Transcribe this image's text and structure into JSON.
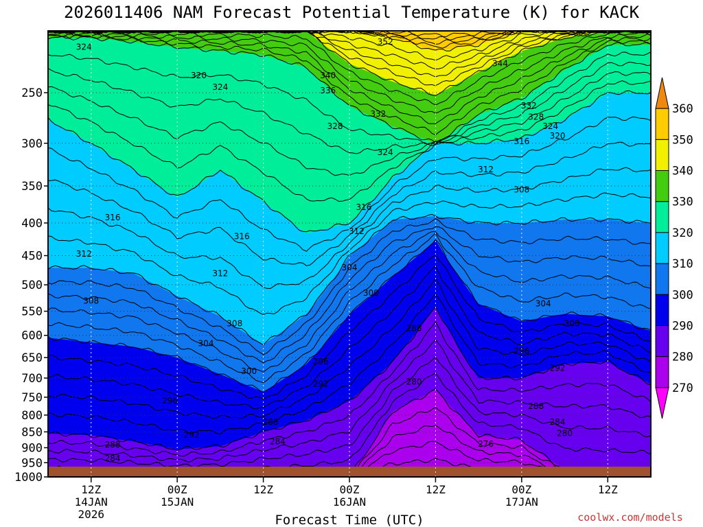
{
  "chart_data": {
    "type": "heatmap",
    "title": "2026011406 NAM Forecast Potential Temperature (K) for KACK",
    "xlabel": "Forecast Time (UTC)",
    "ylabel": "",
    "credit": "coolwx.com/models",
    "x_hours_from_start": [
      0,
      84
    ],
    "x_ticks": [
      {
        "h": 6,
        "label": "12Z",
        "sub": "14JAN",
        "sub2": "2026"
      },
      {
        "h": 18,
        "label": "00Z",
        "sub": "15JAN",
        "sub2": ""
      },
      {
        "h": 30,
        "label": "12Z",
        "sub": "",
        "sub2": ""
      },
      {
        "h": 42,
        "label": "00Z",
        "sub": "16JAN",
        "sub2": ""
      },
      {
        "h": 54,
        "label": "12Z",
        "sub": "",
        "sub2": ""
      },
      {
        "h": 66,
        "label": "00Z",
        "sub": "17JAN",
        "sub2": ""
      },
      {
        "h": 78,
        "label": "12Z",
        "sub": "",
        "sub2": ""
      }
    ],
    "y_scale": "log",
    "y_range_hpa": [
      1000,
      200
    ],
    "y_ticks": [
      250,
      300,
      350,
      400,
      450,
      500,
      550,
      600,
      650,
      700,
      750,
      800,
      850,
      900,
      950,
      1000
    ],
    "colorbar": {
      "labels": [
        360,
        350,
        340,
        330,
        320,
        310,
        300,
        290,
        280,
        270
      ],
      "colors": [
        "#ee8811",
        "#ffcc00",
        "#f0f000",
        "#44cc11",
        "#00ee99",
        "#00ccff",
        "#1177ee",
        "#0000ee",
        "#6600ee",
        "#aa00ee",
        "#ff00ff"
      ]
    },
    "contour_labels": [
      {
        "v": "352",
        "h": 47,
        "p": 208
      },
      {
        "v": "344",
        "h": 63,
        "p": 225
      },
      {
        "v": "340",
        "h": 39,
        "p": 235
      },
      {
        "v": "336",
        "h": 39,
        "p": 248
      },
      {
        "v": "332",
        "h": 46,
        "p": 270
      },
      {
        "v": "332",
        "h": 67,
        "p": 262
      },
      {
        "v": "328",
        "h": 40,
        "p": 282
      },
      {
        "v": "328",
        "h": 68,
        "p": 273
      },
      {
        "v": "324",
        "h": 5,
        "p": 212
      },
      {
        "v": "324",
        "h": 24,
        "p": 245
      },
      {
        "v": "324",
        "h": 47,
        "p": 310
      },
      {
        "v": "324",
        "h": 70,
        "p": 282
      },
      {
        "v": "320",
        "h": 21,
        "p": 235
      },
      {
        "v": "320",
        "h": 71,
        "p": 292
      },
      {
        "v": "316",
        "h": 9,
        "p": 392
      },
      {
        "v": "316",
        "h": 27,
        "p": 420
      },
      {
        "v": "316",
        "h": 44,
        "p": 378
      },
      {
        "v": "316",
        "h": 66,
        "p": 298
      },
      {
        "v": "312",
        "h": 5,
        "p": 447
      },
      {
        "v": "312",
        "h": 24,
        "p": 480
      },
      {
        "v": "312",
        "h": 43,
        "p": 412
      },
      {
        "v": "312",
        "h": 61,
        "p": 330
      },
      {
        "v": "308",
        "h": 6,
        "p": 530
      },
      {
        "v": "308",
        "h": 26,
        "p": 575
      },
      {
        "v": "308",
        "h": 66,
        "p": 355
      },
      {
        "v": "304",
        "h": 22,
        "p": 618
      },
      {
        "v": "304",
        "h": 42,
        "p": 470
      },
      {
        "v": "304",
        "h": 69,
        "p": 535
      },
      {
        "v": "300",
        "h": 28,
        "p": 683
      },
      {
        "v": "300",
        "h": 45,
        "p": 515
      },
      {
        "v": "300",
        "h": 73,
        "p": 575
      },
      {
        "v": "296",
        "h": 17,
        "p": 760
      },
      {
        "v": "296",
        "h": 38,
        "p": 660
      },
      {
        "v": "296",
        "h": 66,
        "p": 635
      },
      {
        "v": "292",
        "h": 20,
        "p": 860
      },
      {
        "v": "292",
        "h": 38,
        "p": 715
      },
      {
        "v": "292",
        "h": 71,
        "p": 675
      },
      {
        "v": "288",
        "h": 9,
        "p": 890
      },
      {
        "v": "288",
        "h": 31,
        "p": 820
      },
      {
        "v": "288",
        "h": 51,
        "p": 585
      },
      {
        "v": "288",
        "h": 68,
        "p": 775
      },
      {
        "v": "284",
        "h": 9,
        "p": 935
      },
      {
        "v": "284",
        "h": 32,
        "p": 880
      },
      {
        "v": "284",
        "h": 71,
        "p": 820
      },
      {
        "v": "280",
        "h": 51,
        "p": 710
      },
      {
        "v": "280",
        "h": 72,
        "p": 855
      },
      {
        "v": "276",
        "h": 61,
        "p": 888
      }
    ]
  }
}
